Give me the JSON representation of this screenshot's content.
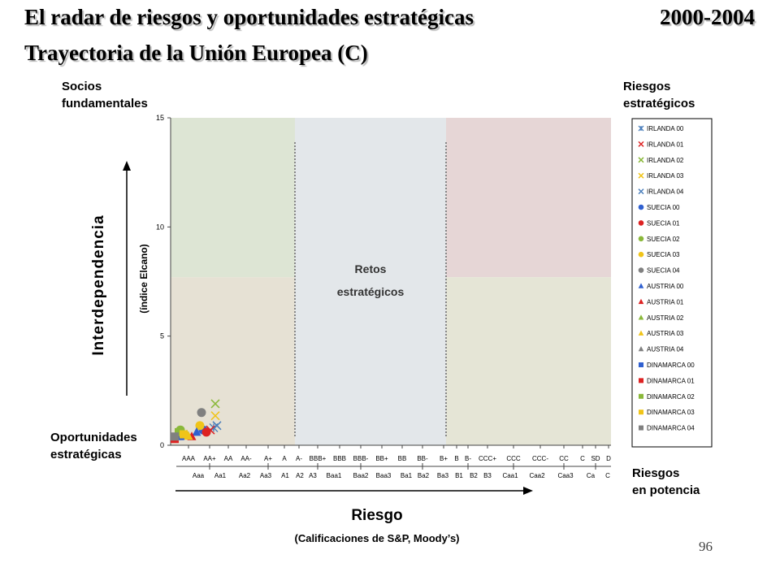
{
  "slide": {
    "title_line1": "El radar de riesgos y oportunidades estratégicas",
    "title_years": "2000-2004",
    "title_line2": "Trayectoria de la Unión Europea (C)",
    "page_number": "96"
  },
  "corners": {
    "top_left": [
      "Socios",
      "fundamentales"
    ],
    "top_right": [
      "Riesgos",
      "estratégicos"
    ],
    "bottom_left": [
      "Oportunidades",
      "estratégicas"
    ],
    "bottom_right": [
      "Riesgos",
      "en potencia"
    ]
  },
  "center_zone": [
    "Retos",
    "estratégicos"
  ],
  "axes": {
    "y_title": "Interdependencia",
    "y_subtitle": "(índice Elcano)",
    "x_title": "Riesgo",
    "x_subtitle": "(Calificaciones de S&P, Moody’s)"
  },
  "colors": {
    "zone_top_left": "#dde5d4",
    "zone_bottom_left": "#e6e1d4",
    "zone_center": "#e3e7ea",
    "zone_top_right": "#e6d6d6",
    "zone_bottom_right": "#e5e5d6",
    "zone_divider": "#888888"
  },
  "chart_data": {
    "type": "scatter",
    "ylim": [
      0,
      15
    ],
    "y_ticks": [
      0,
      5,
      10,
      15
    ],
    "zones": {
      "center_x_range": [
        "BBB+",
        "B+"
      ],
      "y_split": 7.7
    },
    "sp_ratings": [
      "AAA",
      "AA+",
      "AA",
      "AA-",
      "A+",
      "A",
      "A-",
      "BBB+",
      "BBB",
      "BBB-",
      "BB+",
      "BB",
      "BB-",
      "B+",
      "B",
      "B-",
      "CCC+",
      "CCC",
      "CCC-",
      "CC",
      "C",
      "SD",
      "D"
    ],
    "moodys_ratings": [
      "Aaa",
      "Aa1",
      "Aa2",
      "Aa3",
      "A1",
      "A2",
      "A3",
      "Baa1",
      "Baa2",
      "Baa3",
      "Ba1",
      "Ba2",
      "Ba3",
      "B1",
      "B2",
      "B3",
      "Caa1",
      "Caa2",
      "Caa3",
      "Ca",
      "C"
    ],
    "series": [
      {
        "name": "IRLANDA 00",
        "color": "#4a7ebb",
        "marker": "star",
        "x": "AA",
        "y": 0.8
      },
      {
        "name": "IRLANDA 01",
        "color": "#dd2222",
        "marker": "x",
        "x": "AA",
        "y": 0.7
      },
      {
        "name": "IRLANDA 02",
        "color": "#8ab83a",
        "marker": "x",
        "x": "AA",
        "y": 1.9
      },
      {
        "name": "IRLANDA 03",
        "color": "#f0c419",
        "marker": "x",
        "x": "AA",
        "y": 1.5
      },
      {
        "name": "IRLANDA 04",
        "color": "#4a7ebb",
        "marker": "x",
        "x": "AA",
        "y": 0.9
      },
      {
        "name": "SUECIA 00",
        "color": "#3060d0",
        "marker": "circle",
        "x": "AA+",
        "y": 0.7
      },
      {
        "name": "SUECIA 01",
        "color": "#dd2222",
        "marker": "circle",
        "x": "AA+",
        "y": 0.6
      },
      {
        "name": "SUECIA 02",
        "color": "#8ab83a",
        "marker": "circle",
        "x": "AA+",
        "y": 0.7
      },
      {
        "name": "SUECIA 03",
        "color": "#f0c419",
        "marker": "circle",
        "x": "AA+",
        "y": 0.9
      },
      {
        "name": "SUECIA 04",
        "color": "#808080",
        "marker": "circle",
        "x": "AA+",
        "y": 1.5
      },
      {
        "name": "AUSTRIA 00",
        "color": "#3060d0",
        "marker": "triangle",
        "x": "AA+",
        "y": 0.6
      },
      {
        "name": "AUSTRIA 01",
        "color": "#dd2222",
        "marker": "triangle",
        "x": "AA+",
        "y": 0.4
      },
      {
        "name": "AUSTRIA 02",
        "color": "#8ab83a",
        "marker": "triangle",
        "x": "AA+",
        "y": 0.5
      },
      {
        "name": "AUSTRIA 03",
        "color": "#f0c419",
        "marker": "triangle",
        "x": "AA+",
        "y": 0.5
      },
      {
        "name": "AUSTRIA 04",
        "color": "#808080",
        "marker": "triangle",
        "x": "AA+",
        "y": 0.4
      },
      {
        "name": "DINAMARCA 00",
        "color": "#3060d0",
        "marker": "square",
        "x": "AAA",
        "y": 0.5
      },
      {
        "name": "DINAMARCA 01",
        "color": "#dd2222",
        "marker": "square",
        "x": "AAA",
        "y": 0.4
      },
      {
        "name": "DINAMARCA 02",
        "color": "#8ab83a",
        "marker": "square",
        "x": "AAA",
        "y": 0.6
      },
      {
        "name": "DINAMARCA 03",
        "color": "#f0c419",
        "marker": "square",
        "x": "AAA",
        "y": 0.5
      },
      {
        "name": "DINAMARCA 04",
        "color": "#808080",
        "marker": "square",
        "x": "AAA",
        "y": 0.4
      }
    ]
  }
}
